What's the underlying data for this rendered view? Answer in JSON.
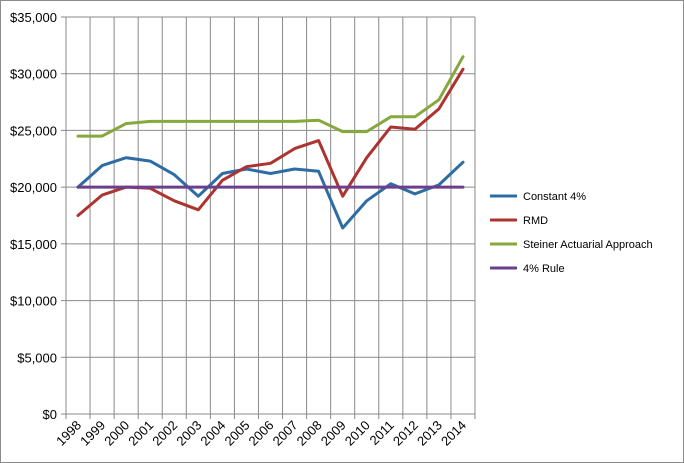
{
  "chart_data": {
    "type": "line",
    "title": "",
    "xlabel": "",
    "ylabel": "",
    "categories": [
      "1998",
      "1999",
      "2000",
      "2001",
      "2002",
      "2003",
      "2004",
      "2005",
      "2006",
      "2007",
      "2008",
      "2009",
      "2010",
      "2011",
      "2012",
      "2013",
      "2014"
    ],
    "ylim": [
      0,
      35000
    ],
    "yticks": [
      0,
      5000,
      10000,
      15000,
      20000,
      25000,
      30000,
      35000
    ],
    "ytick_labels": [
      "$0",
      "$5,000",
      "$10,000",
      "$15,000",
      "$20,000",
      "$25,000",
      "$30,000",
      "$35,000"
    ],
    "grid": "vertical and horizontal",
    "legend_position": "right",
    "series": [
      {
        "name": "Constant 4%",
        "color": "#2e6ca4",
        "values": [
          20000,
          21900,
          22600,
          22300,
          21100,
          19200,
          21200,
          21600,
          21200,
          21600,
          21400,
          16400,
          18800,
          20300,
          19400,
          20200,
          22200
        ]
      },
      {
        "name": "RMD",
        "color": "#ad3330",
        "values": [
          17500,
          19300,
          20000,
          19900,
          18800,
          18000,
          20600,
          21800,
          22100,
          23400,
          24100,
          19200,
          22600,
          25300,
          25100,
          26900,
          30400
        ]
      },
      {
        "name": "Steiner Actuarial Approach",
        "color": "#86a83c",
        "values": [
          24500,
          24500,
          25600,
          25800,
          25800,
          25800,
          25800,
          25800,
          25800,
          25800,
          25900,
          24900,
          24900,
          26200,
          26200,
          27700,
          31500
        ]
      },
      {
        "name": "4% Rule",
        "color": "#6c3f8c",
        "values": [
          20000,
          20000,
          20000,
          20000,
          20000,
          20000,
          20000,
          20000,
          20000,
          20000,
          20000,
          20000,
          20000,
          20000,
          20000,
          20000,
          20000
        ]
      }
    ]
  }
}
